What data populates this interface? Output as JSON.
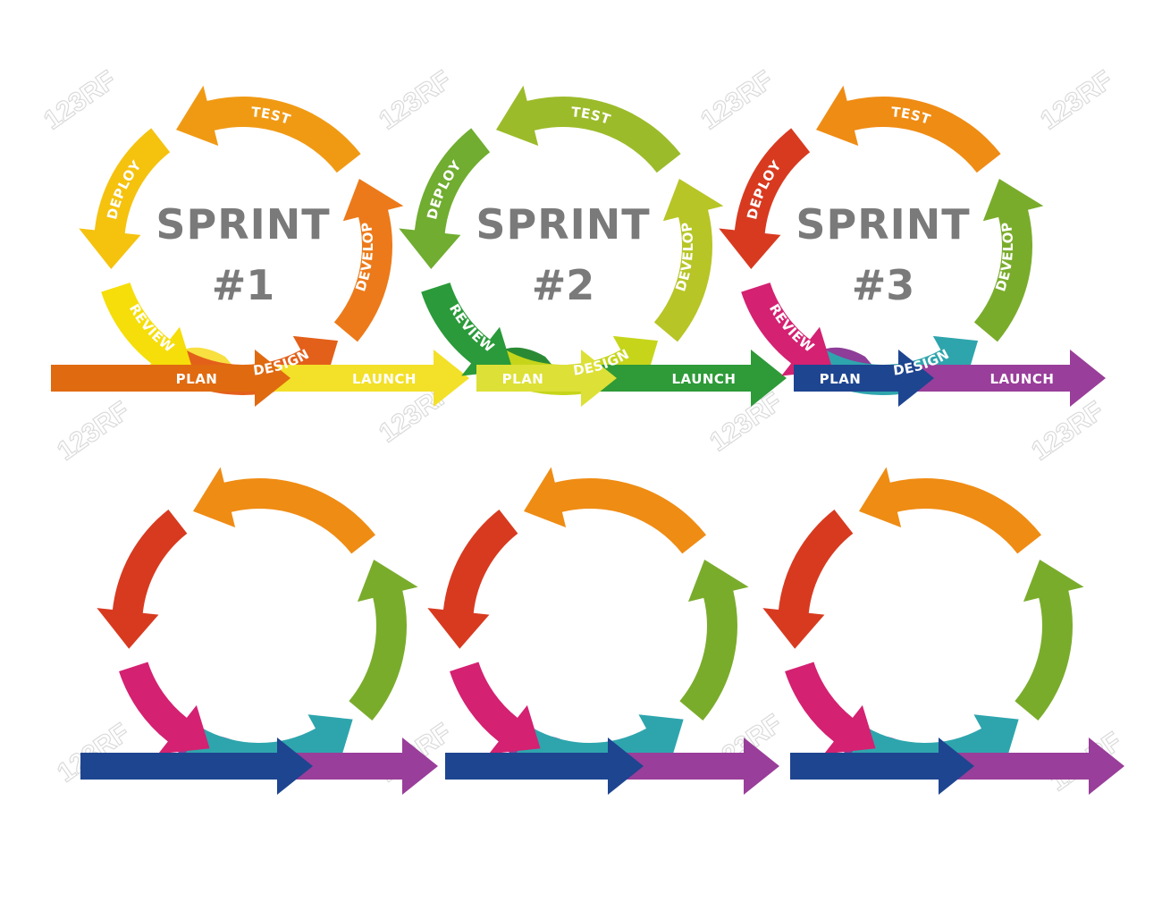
{
  "watermark": "123RF",
  "labels": {
    "plan": "PLAN",
    "launch": "LAUNCH",
    "design": "DESIGN",
    "develop": "DEVELOP",
    "test": "TEST",
    "deploy": "DEPLOY",
    "review": "REVIEW"
  },
  "sprints": [
    {
      "id": "sprint-1",
      "title": "SPRINT",
      "number": "#1",
      "labeled": true,
      "colors": {
        "plan": "#e06a10",
        "launch": "#f3e028",
        "design": "#e3601a",
        "develop": "#ec7a1a",
        "test": "#f09a14",
        "deploy": "#f5c20e",
        "review": "#f5de0a",
        "plan_bump": "#f7e040"
      }
    },
    {
      "id": "sprint-2",
      "title": "SPRINT",
      "number": "#2",
      "labeled": true,
      "colors": {
        "plan": "#dde036",
        "launch": "#2e9a38",
        "design": "#c6d51a",
        "develop": "#b7c526",
        "test": "#9cbb2a",
        "deploy": "#70ad30",
        "review": "#2a9a3a",
        "plan_bump": "#2a8a34"
      }
    },
    {
      "id": "sprint-3",
      "title": "SPRINT",
      "number": "#3",
      "labeled": true,
      "colors": {
        "plan": "#1e4590",
        "launch": "#993e9a",
        "design": "#2ea5ad",
        "develop": "#7aac2c",
        "test": "#ef8c14",
        "deploy": "#d83a20",
        "review": "#d42172",
        "plan_bump": "#8e3d98"
      }
    },
    {
      "id": "blank-1",
      "labeled": false,
      "colors": {
        "plan": "#1e4590",
        "launch": "#993e9a",
        "design": "#2ea5ad",
        "develop": "#7aac2c",
        "test": "#ef8c14",
        "deploy": "#d83a20",
        "review": "#d42172",
        "plan_bump": "#8e3d98"
      }
    },
    {
      "id": "blank-2",
      "labeled": false,
      "colors": {
        "plan": "#1e4590",
        "launch": "#993e9a",
        "design": "#2ea5ad",
        "develop": "#7aac2c",
        "test": "#ef8c14",
        "deploy": "#d83a20",
        "review": "#d42172",
        "plan_bump": "#8e3d98"
      }
    },
    {
      "id": "blank-3",
      "labeled": false,
      "colors": {
        "plan": "#1e4590",
        "launch": "#993e9a",
        "design": "#2ea5ad",
        "develop": "#7aac2c",
        "test": "#ef8c14",
        "deploy": "#d83a20",
        "review": "#d42172",
        "plan_bump": "#8e3d98"
      }
    }
  ]
}
